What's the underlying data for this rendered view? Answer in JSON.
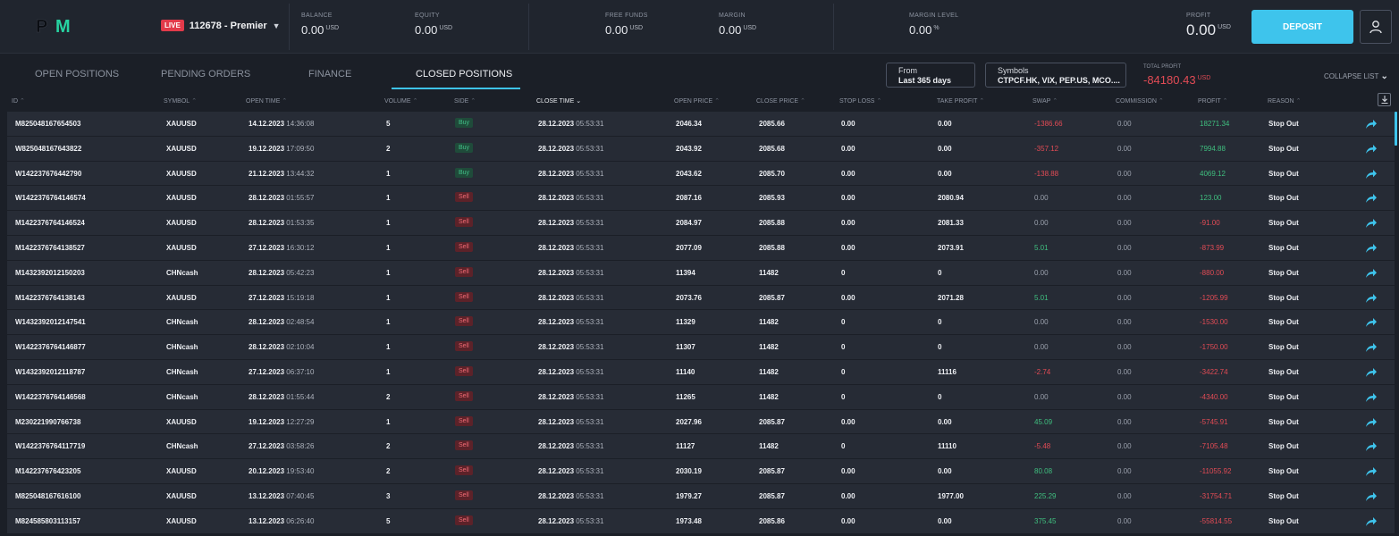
{
  "brand": {
    "logo_p": "P",
    "logo_m": "M",
    "accent": "#27d3a2"
  },
  "account": {
    "badge": "LIVE",
    "name": "112678 - Premier",
    "chevron_icon": "chevron-down-icon"
  },
  "metrics": [
    {
      "label": "BALANCE",
      "value": "0.00",
      "unit": "USD"
    },
    {
      "label": "EQUITY",
      "value": "0.00",
      "unit": "USD"
    },
    {
      "label": "FREE FUNDS",
      "value": "0.00",
      "unit": "USD"
    },
    {
      "label": "MARGIN",
      "value": "0.00",
      "unit": "USD"
    },
    {
      "label": "MARGIN LEVEL",
      "value": "0.00",
      "unit": "%"
    },
    {
      "label": "PROFIT",
      "value": "0.00",
      "unit": "USD"
    }
  ],
  "deposit_label": "DEPOSIT",
  "tabs": [
    {
      "label": "OPEN POSITIONS"
    },
    {
      "label": "PENDING ORDERS"
    },
    {
      "label": "FINANCE"
    },
    {
      "label": "CLOSED POSITIONS"
    }
  ],
  "filters": {
    "from_label": "From",
    "from_value": "Last 365 days",
    "symbols_label": "Symbols",
    "symbols_value": "CTPCF.HK, VIX, PEP.US, MCO...."
  },
  "total_profit": {
    "label": "TOTAL PROFIT",
    "value": "-84180.43",
    "unit": "USD"
  },
  "collapse_label": "COLLAPSE LIST",
  "columns": {
    "id": "ID",
    "symbol": "SYMBOL",
    "open_time": "OPEN TIME",
    "volume": "VOLUME",
    "side": "SIDE",
    "close_time": "CLOSE TIME",
    "open_price": "OPEN PRICE",
    "close_price": "CLOSE PRICE",
    "stop_loss": "STOP LOSS",
    "take_profit": "TAKE PROFIT",
    "swap": "SWAP",
    "commission": "COMMISSION",
    "profit": "PROFIT",
    "reason": "REASON"
  },
  "rows": [
    {
      "id": "M825048167654503",
      "symbol": "XAUUSD",
      "open_date": "14.12.2023",
      "open_time": "14:36:08",
      "volume": "5",
      "side": "Buy",
      "close_date": "28.12.2023",
      "close_time": "05:53:31",
      "open_price": "2046.34",
      "close_price": "2085.66",
      "stop_loss": "0.00",
      "take_profit": "0.00",
      "swap": "-1386.66",
      "commission": "0.00",
      "profit": "18271.34",
      "reason": "Stop Out"
    },
    {
      "id": "W825048167643822",
      "symbol": "XAUUSD",
      "open_date": "19.12.2023",
      "open_time": "17:09:50",
      "volume": "2",
      "side": "Buy",
      "close_date": "28.12.2023",
      "close_time": "05:53:31",
      "open_price": "2043.92",
      "close_price": "2085.68",
      "stop_loss": "0.00",
      "take_profit": "0.00",
      "swap": "-357.12",
      "commission": "0.00",
      "profit": "7994.88",
      "reason": "Stop Out"
    },
    {
      "id": "W142237676442790",
      "symbol": "XAUUSD",
      "open_date": "21.12.2023",
      "open_time": "13:44:32",
      "volume": "1",
      "side": "Buy",
      "close_date": "28.12.2023",
      "close_time": "05:53:31",
      "open_price": "2043.62",
      "close_price": "2085.70",
      "stop_loss": "0.00",
      "take_profit": "0.00",
      "swap": "-138.88",
      "commission": "0.00",
      "profit": "4069.12",
      "reason": "Stop Out"
    },
    {
      "id": "W1422376764146574",
      "symbol": "XAUUSD",
      "open_date": "28.12.2023",
      "open_time": "01:55:57",
      "volume": "1",
      "side": "Sell",
      "close_date": "28.12.2023",
      "close_time": "05:53:31",
      "open_price": "2087.16",
      "close_price": "2085.93",
      "stop_loss": "0.00",
      "take_profit": "2080.94",
      "swap": "0.00",
      "commission": "0.00",
      "profit": "123.00",
      "reason": "Stop Out"
    },
    {
      "id": "M1422376764146524",
      "symbol": "XAUUSD",
      "open_date": "28.12.2023",
      "open_time": "01:53:35",
      "volume": "1",
      "side": "Sell",
      "close_date": "28.12.2023",
      "close_time": "05:53:31",
      "open_price": "2084.97",
      "close_price": "2085.88",
      "stop_loss": "0.00",
      "take_profit": "2081.33",
      "swap": "0.00",
      "commission": "0.00",
      "profit": "-91.00",
      "reason": "Stop Out"
    },
    {
      "id": "M1422376764138527",
      "symbol": "XAUUSD",
      "open_date": "27.12.2023",
      "open_time": "16:30:12",
      "volume": "1",
      "side": "Sell",
      "close_date": "28.12.2023",
      "close_time": "05:53:31",
      "open_price": "2077.09",
      "close_price": "2085.88",
      "stop_loss": "0.00",
      "take_profit": "2073.91",
      "swap": "5.01",
      "commission": "0.00",
      "profit": "-873.99",
      "reason": "Stop Out"
    },
    {
      "id": "M1432392012150203",
      "symbol": "CHNcash",
      "open_date": "28.12.2023",
      "open_time": "05:42:23",
      "volume": "1",
      "side": "Sell",
      "close_date": "28.12.2023",
      "close_time": "05:53:31",
      "open_price": "11394",
      "close_price": "11482",
      "stop_loss": "0",
      "take_profit": "0",
      "swap": "0.00",
      "commission": "0.00",
      "profit": "-880.00",
      "reason": "Stop Out"
    },
    {
      "id": "M1422376764138143",
      "symbol": "XAUUSD",
      "open_date": "27.12.2023",
      "open_time": "15:19:18",
      "volume": "1",
      "side": "Sell",
      "close_date": "28.12.2023",
      "close_time": "05:53:31",
      "open_price": "2073.76",
      "close_price": "2085.87",
      "stop_loss": "0.00",
      "take_profit": "2071.28",
      "swap": "5.01",
      "commission": "0.00",
      "profit": "-1205.99",
      "reason": "Stop Out"
    },
    {
      "id": "W1432392012147541",
      "symbol": "CHNcash",
      "open_date": "28.12.2023",
      "open_time": "02:48:54",
      "volume": "1",
      "side": "Sell",
      "close_date": "28.12.2023",
      "close_time": "05:53:31",
      "open_price": "11329",
      "close_price": "11482",
      "stop_loss": "0",
      "take_profit": "0",
      "swap": "0.00",
      "commission": "0.00",
      "profit": "-1530.00",
      "reason": "Stop Out"
    },
    {
      "id": "W1422376764146877",
      "symbol": "CHNcash",
      "open_date": "28.12.2023",
      "open_time": "02:10:04",
      "volume": "1",
      "side": "Sell",
      "close_date": "28.12.2023",
      "close_time": "05:53:31",
      "open_price": "11307",
      "close_price": "11482",
      "stop_loss": "0",
      "take_profit": "0",
      "swap": "0.00",
      "commission": "0.00",
      "profit": "-1750.00",
      "reason": "Stop Out"
    },
    {
      "id": "W1432392012118787",
      "symbol": "CHNcash",
      "open_date": "27.12.2023",
      "open_time": "06:37:10",
      "volume": "1",
      "side": "Sell",
      "close_date": "28.12.2023",
      "close_time": "05:53:31",
      "open_price": "11140",
      "close_price": "11482",
      "stop_loss": "0",
      "take_profit": "11116",
      "swap": "-2.74",
      "commission": "0.00",
      "profit": "-3422.74",
      "reason": "Stop Out"
    },
    {
      "id": "W1422376764146568",
      "symbol": "CHNcash",
      "open_date": "28.12.2023",
      "open_time": "01:55:44",
      "volume": "2",
      "side": "Sell",
      "close_date": "28.12.2023",
      "close_time": "05:53:31",
      "open_price": "11265",
      "close_price": "11482",
      "stop_loss": "0",
      "take_profit": "0",
      "swap": "0.00",
      "commission": "0.00",
      "profit": "-4340.00",
      "reason": "Stop Out"
    },
    {
      "id": "M230221990766738",
      "symbol": "XAUUSD",
      "open_date": "19.12.2023",
      "open_time": "12:27:29",
      "volume": "1",
      "side": "Sell",
      "close_date": "28.12.2023",
      "close_time": "05:53:31",
      "open_price": "2027.96",
      "close_price": "2085.87",
      "stop_loss": "0.00",
      "take_profit": "0.00",
      "swap": "45.09",
      "commission": "0.00",
      "profit": "-5745.91",
      "reason": "Stop Out"
    },
    {
      "id": "W1422376764117719",
      "symbol": "CHNcash",
      "open_date": "27.12.2023",
      "open_time": "03:58:26",
      "volume": "2",
      "side": "Sell",
      "close_date": "28.12.2023",
      "close_time": "05:53:31",
      "open_price": "11127",
      "close_price": "11482",
      "stop_loss": "0",
      "take_profit": "11110",
      "swap": "-5.48",
      "commission": "0.00",
      "profit": "-7105.48",
      "reason": "Stop Out"
    },
    {
      "id": "M142237676423205",
      "symbol": "XAUUSD",
      "open_date": "20.12.2023",
      "open_time": "19:53:40",
      "volume": "2",
      "side": "Sell",
      "close_date": "28.12.2023",
      "close_time": "05:53:31",
      "open_price": "2030.19",
      "close_price": "2085.87",
      "stop_loss": "0.00",
      "take_profit": "0.00",
      "swap": "80.08",
      "commission": "0.00",
      "profit": "-11055.92",
      "reason": "Stop Out"
    },
    {
      "id": "M825048167616100",
      "symbol": "XAUUSD",
      "open_date": "13.12.2023",
      "open_time": "07:40:45",
      "volume": "3",
      "side": "Sell",
      "close_date": "28.12.2023",
      "close_time": "05:53:31",
      "open_price": "1979.27",
      "close_price": "2085.87",
      "stop_loss": "0.00",
      "take_profit": "1977.00",
      "swap": "225.29",
      "commission": "0.00",
      "profit": "-31754.71",
      "reason": "Stop Out"
    },
    {
      "id": "M824585803113157",
      "symbol": "XAUUSD",
      "open_date": "13.12.2023",
      "open_time": "06:26:40",
      "volume": "5",
      "side": "Sell",
      "close_date": "28.12.2023",
      "close_time": "05:53:31",
      "open_price": "1973.48",
      "close_price": "2085.86",
      "stop_loss": "0.00",
      "take_profit": "0.00",
      "swap": "375.45",
      "commission": "0.00",
      "profit": "-55814.55",
      "reason": "Stop Out"
    }
  ],
  "colors": {
    "accent": "#3ec4ec",
    "negative": "#e24b55",
    "positive": "#3fbf7f",
    "background": "#1b1f27"
  }
}
